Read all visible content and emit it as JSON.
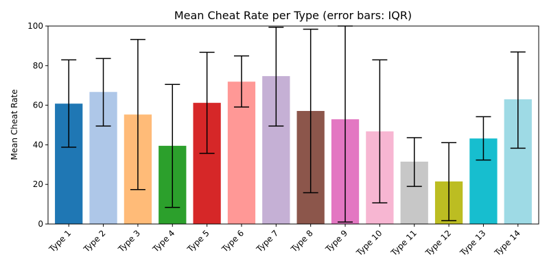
{
  "chart_data": {
    "type": "bar",
    "title": "Mean Cheat Rate per Type (error bars: IQR)",
    "xlabel": "",
    "ylabel": "Mean Cheat Rate",
    "ylim": [
      0,
      100
    ],
    "yticks": [
      0,
      20,
      40,
      60,
      80,
      100
    ],
    "grid": false,
    "categories": [
      "Type 1",
      "Type 2",
      "Type 3",
      "Type 4",
      "Type 5",
      "Type 6",
      "Type 7",
      "Type 8",
      "Type 9",
      "Type 10",
      "Type 11",
      "Type 12",
      "Type 13",
      "Type 14"
    ],
    "values": [
      60.8,
      66.7,
      55.3,
      39.5,
      61.2,
      71.9,
      74.7,
      57.1,
      52.9,
      46.8,
      31.5,
      21.5,
      43.2,
      63.0
    ],
    "iqr_low": [
      38.8,
      49.5,
      17.4,
      8.4,
      35.7,
      59.1,
      49.5,
      15.8,
      1.0,
      10.7,
      19.0,
      1.7,
      32.3,
      38.3
    ],
    "iqr_high": [
      82.9,
      83.6,
      93.2,
      70.5,
      86.7,
      84.9,
      99.4,
      98.4,
      100.0,
      82.9,
      43.6,
      41.1,
      54.2,
      86.9
    ],
    "colors": [
      "#1f77b4",
      "#aec7e8",
      "#ffbb78",
      "#2ca02c",
      "#d62728",
      "#ff9896",
      "#c5b0d5",
      "#8c564b",
      "#e377c2",
      "#f7b6d2",
      "#c7c7c7",
      "#bcbd22",
      "#17becf",
      "#9edae5"
    ]
  }
}
